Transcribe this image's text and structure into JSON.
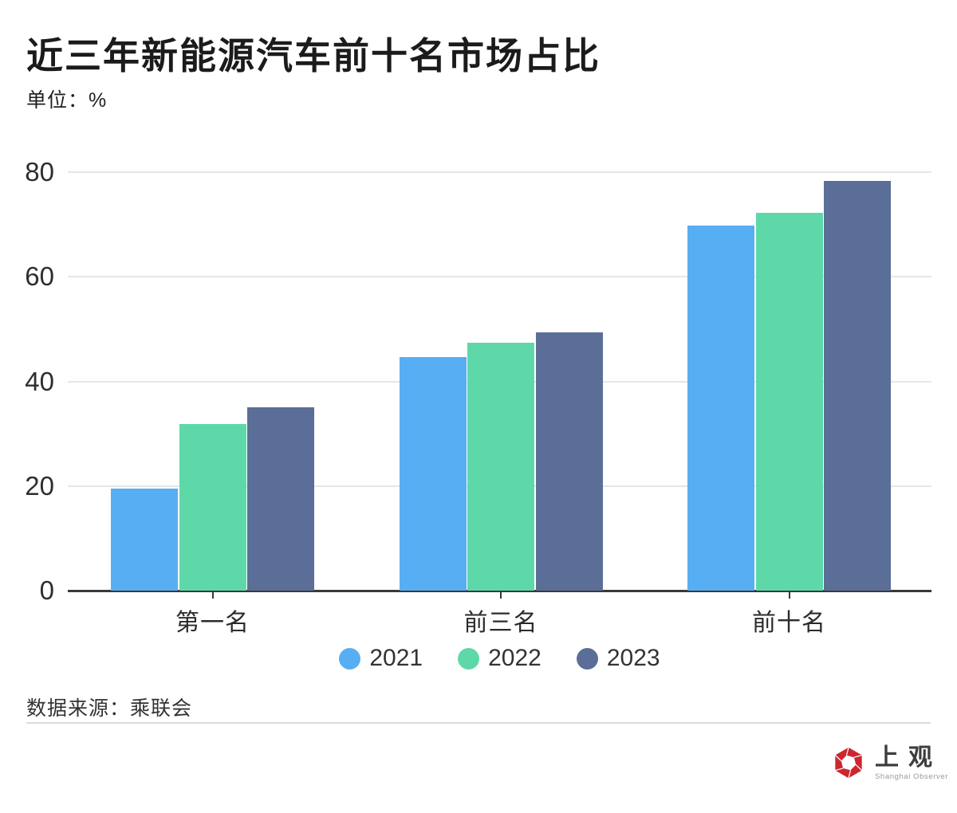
{
  "header": {
    "title": "近三年新能源汽车前十名市场占比",
    "unit_label": "单位：%"
  },
  "footer": {
    "source_label": "数据来源：乘联会",
    "logo_cn": "上观",
    "logo_en": "Shanghai Observer",
    "logo_color": "#cd2630"
  },
  "chart_data": {
    "type": "bar",
    "title": "近三年新能源汽车前十名市场占比",
    "ylabel": "单位：%",
    "xlabel": "",
    "categories": [
      "第一名",
      "前三名",
      "前十名"
    ],
    "series": [
      {
        "name": "2021",
        "color": "#58aef3",
        "values": [
          19.5,
          44.7,
          69.8
        ]
      },
      {
        "name": "2022",
        "color": "#5fd8a9",
        "values": [
          31.8,
          47.4,
          72.3
        ]
      },
      {
        "name": "2023",
        "color": "#5b6e97",
        "values": [
          35.1,
          49.3,
          78.3
        ]
      }
    ],
    "ylim": [
      0,
      80
    ],
    "yticks": [
      0,
      20,
      40,
      60,
      80
    ],
    "grid": true,
    "legend_position": "bottom",
    "source": "乘联会"
  }
}
